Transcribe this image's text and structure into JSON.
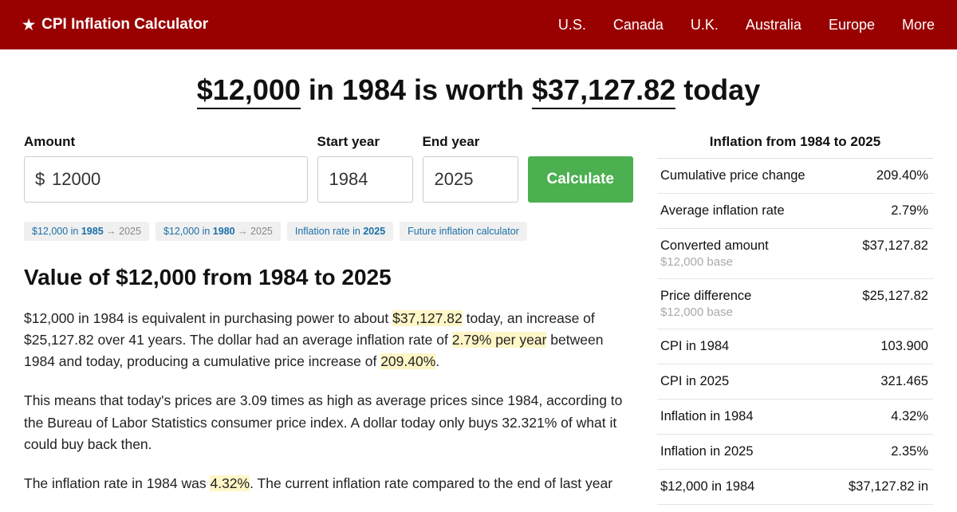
{
  "header": {
    "brand": "CPI Inflation Calculator",
    "nav": [
      "U.S.",
      "Canada",
      "U.K.",
      "Australia",
      "Europe",
      "More"
    ]
  },
  "headline": {
    "amount": "$12,000",
    "mid1": " in 1984 is worth ",
    "result": "$37,127.82",
    "mid2": " today"
  },
  "form": {
    "amount_label": "Amount",
    "amount_value": "12000",
    "start_label": "Start year",
    "start_value": "1984",
    "end_label": "End year",
    "end_value": "2025",
    "button": "Calculate"
  },
  "chips": [
    {
      "pre": "$12,000 in ",
      "b": "1985",
      "post": " → 2025"
    },
    {
      "pre": "$12,000 in ",
      "b": "1980",
      "post": " → 2025"
    },
    {
      "pre": "Inflation rate in ",
      "b": "2025",
      "post": ""
    },
    {
      "pre": "Future inflation calculator",
      "b": "",
      "post": ""
    }
  ],
  "section_title": "Value of $12,000 from 1984 to 2025",
  "p1": {
    "a": "$12,000 in 1984 is equivalent in purchasing power to about ",
    "h1": "$37,127.82",
    "b": " today, an increase of $25,127.82 over 41 years. The dollar had an average inflation rate of ",
    "h2": "2.79% per year",
    "c": " between 1984 and today, producing a cumulative price increase of ",
    "h3": "209.40%",
    "d": "."
  },
  "p2": "This means that today's prices are 3.09 times as high as average prices since 1984, according to the Bureau of Labor Statistics consumer price index. A dollar today only buys 32.321% of what it could buy back then.",
  "p3": {
    "a": "The inflation rate in 1984 was ",
    "h1": "4.32%",
    "b": ". The current inflation rate compared to the end of last year"
  },
  "side": {
    "title": "Inflation from 1984 to 2025",
    "rows": [
      {
        "label": "Cumulative price change",
        "sub": "",
        "value": "209.40%"
      },
      {
        "label": "Average inflation rate",
        "sub": "",
        "value": "2.79%"
      },
      {
        "label": "Converted amount",
        "sub": "$12,000 base",
        "value": "$37,127.82"
      },
      {
        "label": "Price difference",
        "sub": "$12,000 base",
        "value": "$25,127.82"
      },
      {
        "label": "CPI in 1984",
        "sub": "",
        "value": "103.900"
      },
      {
        "label": "CPI in 2025",
        "sub": "",
        "value": "321.465"
      },
      {
        "label": "Inflation in 1984",
        "sub": "",
        "value": "4.32%"
      },
      {
        "label": "Inflation in 2025",
        "sub": "",
        "value": "2.35%"
      },
      {
        "label": "$12,000 in 1984",
        "sub": "",
        "value": "$37,127.82 in"
      }
    ]
  }
}
